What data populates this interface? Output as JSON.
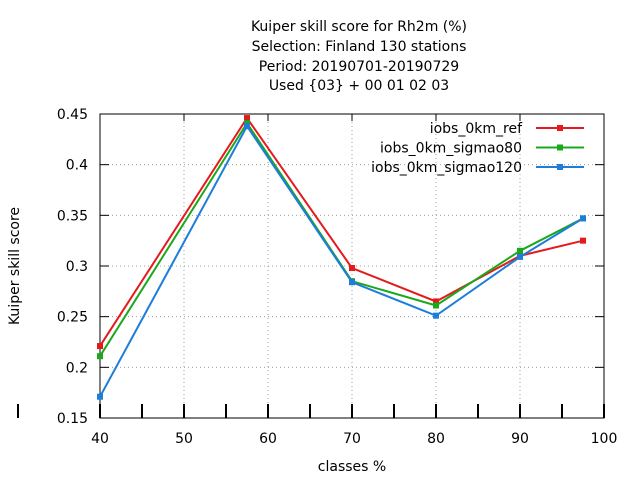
{
  "chart_data": {
    "type": "line",
    "title_lines": [
      "Kuiper skill score  for Rh2m (%)",
      "Selection: Finland    130 stations",
      "Period: 20190701-20190729",
      "Used {03} + 00 01 02 03"
    ],
    "xlabel": "classes %",
    "ylabel": "Kuiper skill score",
    "xlim": [
      40,
      100
    ],
    "ylim": [
      0.15,
      0.45
    ],
    "xticks": [
      40,
      50,
      60,
      70,
      80,
      90,
      100
    ],
    "yticks": [
      0.15,
      0.2,
      0.25,
      0.3,
      0.35,
      0.4,
      0.45
    ],
    "xtick_labels": [
      "40",
      "50",
      "60",
      "70",
      "80",
      "90",
      "100"
    ],
    "ytick_labels": [
      "0.15",
      "0.2",
      "0.25",
      "0.3",
      "0.35",
      "0.4",
      "0.45"
    ],
    "grid": true,
    "legend_position": "top-right",
    "series": [
      {
        "name": "iobs_0km_ref",
        "color": "#e41a1c",
        "x": [
          40,
          57.5,
          70,
          80,
          90,
          97.5
        ],
        "y": [
          0.221,
          0.446,
          0.298,
          0.265,
          0.31,
          0.325
        ]
      },
      {
        "name": "iobs_0km_sigmao80",
        "color": "#1ca81c",
        "x": [
          40,
          57.5,
          70,
          80,
          90,
          97.5
        ],
        "y": [
          0.211,
          0.441,
          0.285,
          0.261,
          0.315,
          0.347
        ]
      },
      {
        "name": "iobs_0km_sigmao120",
        "color": "#1c7ddb",
        "x": [
          40,
          57.5,
          70,
          80,
          90,
          97.5
        ],
        "y": [
          0.171,
          0.438,
          0.284,
          0.251,
          0.309,
          0.347
        ]
      }
    ]
  }
}
